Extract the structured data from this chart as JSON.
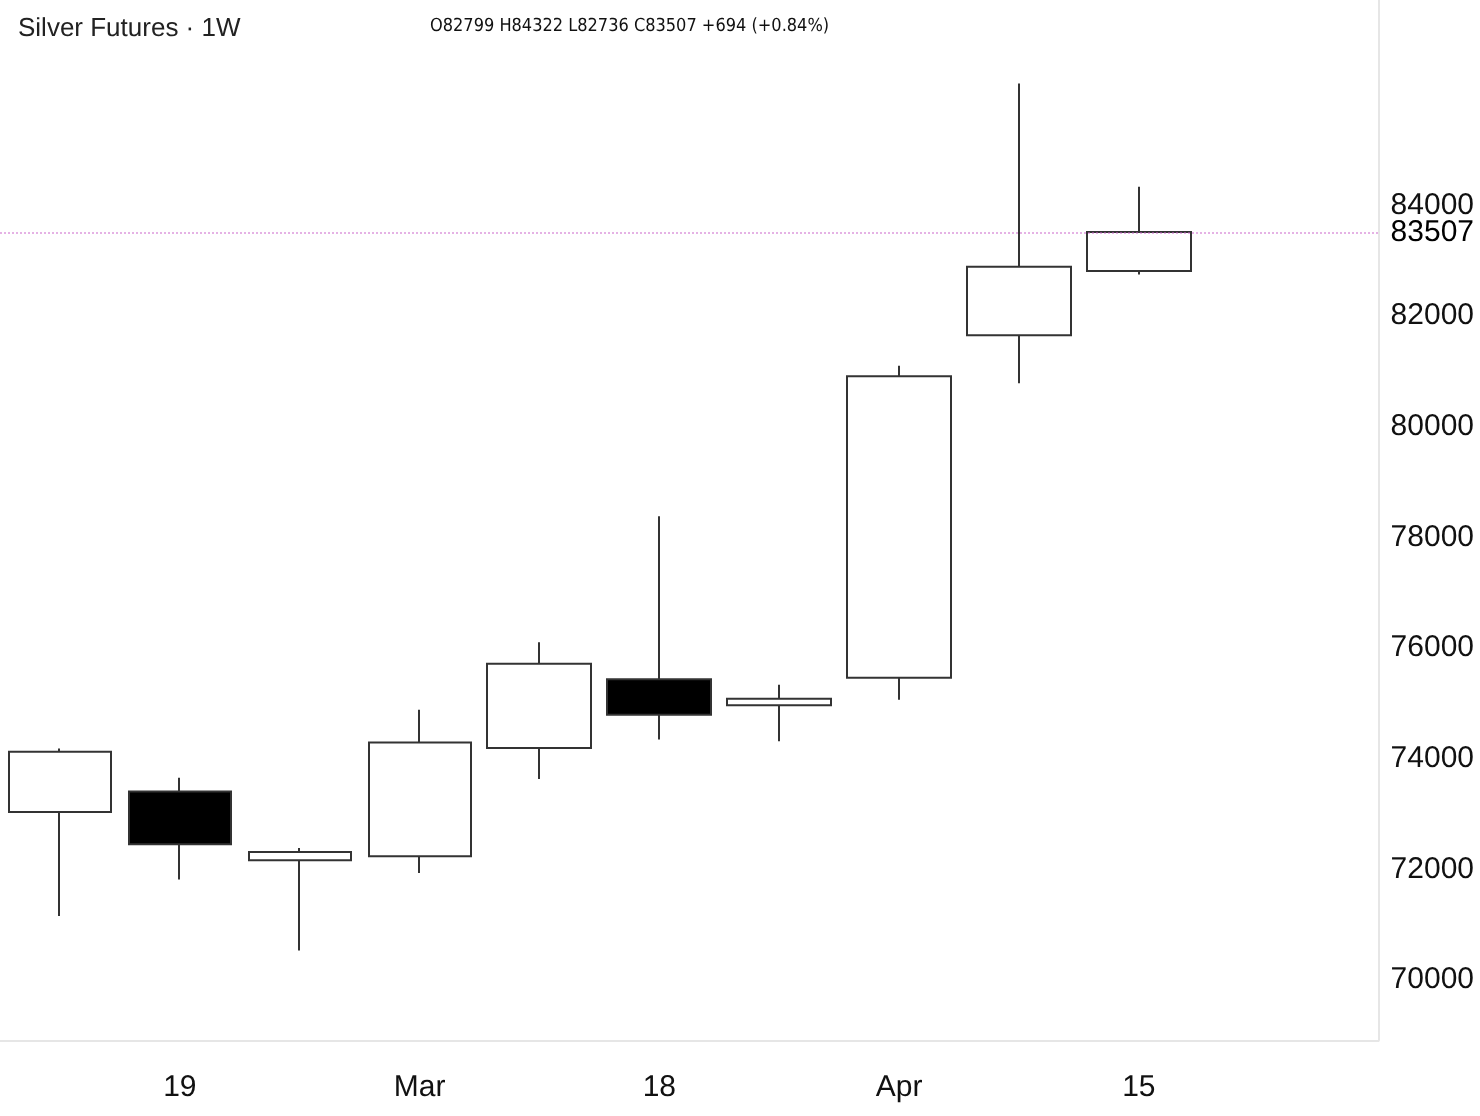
{
  "chart_data": {
    "type": "candlestick",
    "title": "Silver Futures · 1W",
    "subtitle": "O82799 H84322 L82736 C83507 +694 (+0.84%)",
    "categories": [
      null,
      "19",
      null,
      "Mar",
      null,
      "18",
      null,
      "Apr",
      null,
      "15"
    ],
    "ohlc": [
      [
        73020,
        74170,
        71140,
        74110
      ],
      [
        73390,
        73640,
        71800,
        72440
      ],
      [
        72150,
        72370,
        70520,
        72300
      ],
      [
        72220,
        74870,
        71920,
        74280
      ],
      [
        74180,
        76090,
        73620,
        75700
      ],
      [
        75420,
        78370,
        74330,
        74780
      ],
      [
        74950,
        75320,
        74300,
        75070
      ],
      [
        75450,
        81090,
        75050,
        80900
      ],
      [
        81640,
        86190,
        80770,
        82880
      ],
      [
        82799,
        84322,
        82736,
        83507
      ]
    ],
    "colors": [
      "#ffffff",
      "#000000",
      "#ffffff",
      "#ffffff",
      "#ffffff",
      "#000000",
      "#ffffff",
      "#ffffff",
      "#ffffff",
      "#ffffff"
    ],
    "ylim": [
      68900,
      87700
    ],
    "yticks": [
      70000,
      72000,
      74000,
      76000,
      78000,
      80000,
      82000,
      84000
    ],
    "ref_lines": [
      {
        "axis": "y",
        "value": 83507,
        "label": "83507",
        "color": "#cc66cc",
        "line_style": "dotted"
      }
    ]
  }
}
